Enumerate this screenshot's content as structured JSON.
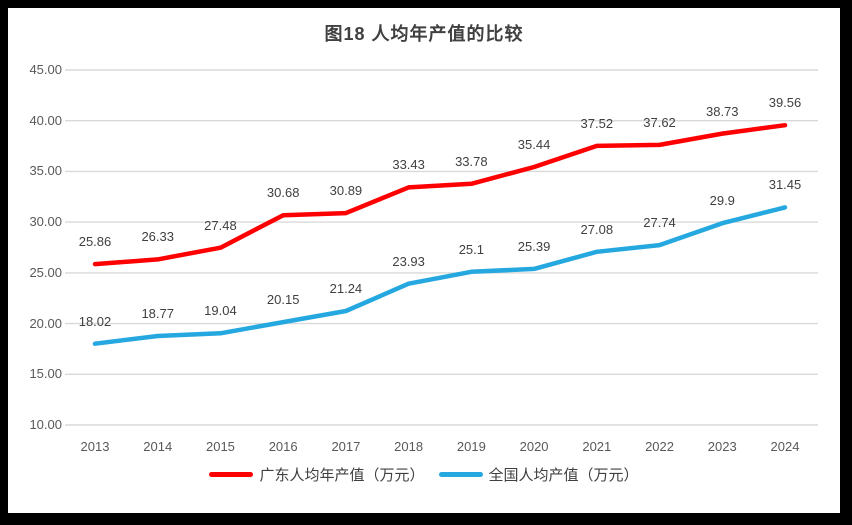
{
  "chart_data": {
    "type": "line",
    "title": "图18 人均年产值的比较",
    "categories": [
      "2013",
      "2014",
      "2015",
      "2016",
      "2017",
      "2018",
      "2019",
      "2020",
      "2021",
      "2022",
      "2023",
      "2024"
    ],
    "series": [
      {
        "name": "广东人均年产值（万元）",
        "color": "#fe0000",
        "values": [
          25.86,
          26.33,
          27.48,
          30.68,
          30.89,
          33.43,
          33.78,
          35.44,
          37.52,
          37.62,
          38.73,
          39.56
        ]
      },
      {
        "name": "全国人均产值（万元）",
        "color": "#25a8e0",
        "values": [
          18.02,
          18.77,
          19.04,
          20.15,
          21.24,
          23.93,
          25.1,
          25.39,
          27.08,
          27.74,
          29.9,
          31.45
        ]
      }
    ],
    "y_ticks": [
      "45.00",
      "40.00",
      "35.00",
      "30.00",
      "25.00",
      "20.00",
      "15.00",
      "10.00"
    ],
    "ylim": [
      10,
      45
    ],
    "grid": true,
    "gridline_color": "#d9d9d9",
    "legend_position": "bottom"
  }
}
